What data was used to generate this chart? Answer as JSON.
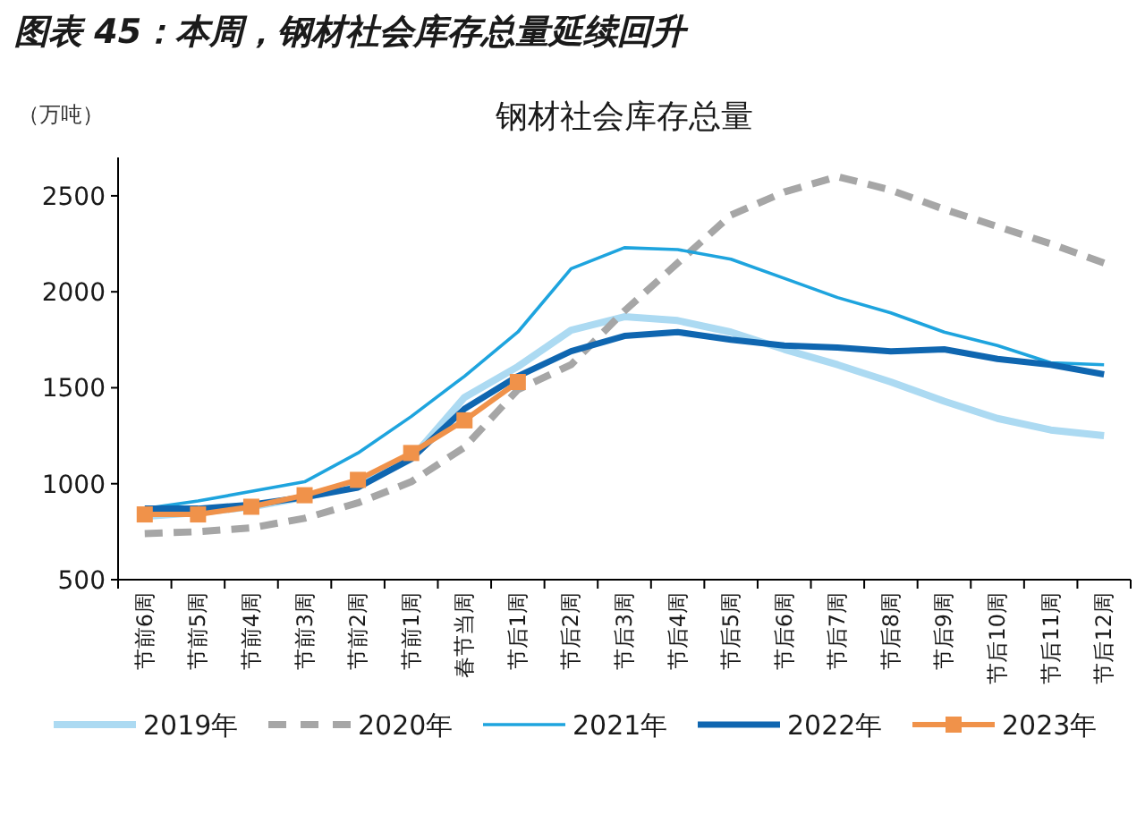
{
  "chart_data": {
    "type": "line",
    "title": "图表 45：本周，钢材社会库存总量延续回升",
    "subtitle": "钢材社会库存总量",
    "ylabel": "（万吨）",
    "categories": [
      "节前6周",
      "节前5周",
      "节前4周",
      "节前3周",
      "节前2周",
      "节前1周",
      "春节当周",
      "节后1周",
      "节后2周",
      "节后3周",
      "节后4周",
      "节后5周",
      "节后6周",
      "节后7周",
      "节后8周",
      "节后9周",
      "节后10周",
      "节后11周",
      "节后12周"
    ],
    "series": [
      {
        "name": "2019年",
        "color": "#acdaf2",
        "values": [
          830,
          850,
          880,
          930,
          990,
          1130,
          1450,
          1610,
          1800,
          1870,
          1850,
          1790,
          1700,
          1620,
          1530,
          1430,
          1340,
          1280,
          1250
        ]
      },
      {
        "name": "2020年",
        "color": "#a6a6a6",
        "line_style": "dashed",
        "values": [
          740,
          750,
          770,
          820,
          900,
          1010,
          1190,
          1490,
          1620,
          1900,
          2150,
          2400,
          2520,
          2600,
          2530,
          2430,
          2340,
          2250,
          2150
        ]
      },
      {
        "name": "2021年",
        "color": "#1ea4de",
        "values": [
          870,
          910,
          960,
          1010,
          1160,
          1350,
          1560,
          1790,
          2120,
          2230,
          2220,
          2170,
          2070,
          1970,
          1890,
          1790,
          1720,
          1630,
          1620
        ]
      },
      {
        "name": "2022年",
        "color": "#0f66b0",
        "values": [
          870,
          870,
          890,
          930,
          980,
          1130,
          1390,
          1560,
          1690,
          1770,
          1790,
          1750,
          1720,
          1710,
          1690,
          1700,
          1650,
          1620,
          1570
        ]
      },
      {
        "name": "2023年",
        "color": "#f0924a",
        "marker": "square",
        "values": [
          840,
          840,
          880,
          940,
          1020,
          1160,
          1330,
          1530,
          null,
          null,
          null,
          null,
          null,
          null,
          null,
          null,
          null,
          null,
          null
        ]
      }
    ],
    "ylim": [
      500,
      2700
    ],
    "yticks": [
      500,
      1000,
      1500,
      2000,
      2500
    ],
    "legend": "bottom",
    "grid": false,
    "marker": "none",
    "line_style": "solid"
  }
}
